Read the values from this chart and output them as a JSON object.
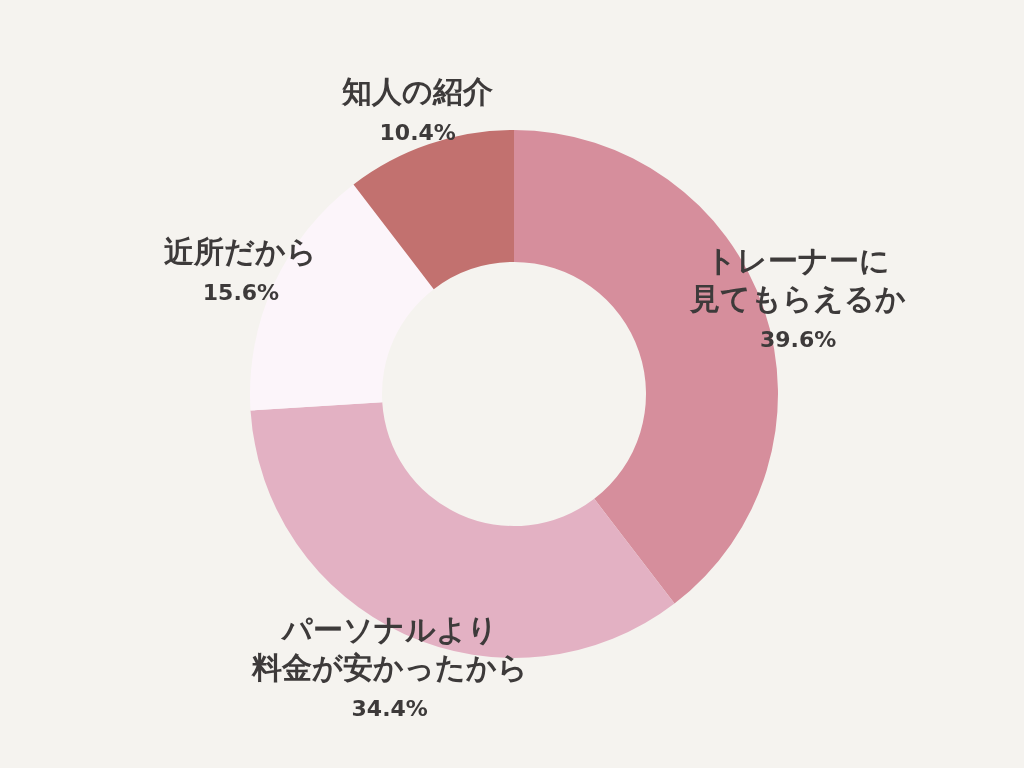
{
  "chart_data": {
    "type": "donut",
    "categories": [
      "トレーナーに見てもらえるか",
      "パーソナルより料金が安かったから",
      "近所だから",
      "知人の紹介"
    ],
    "values": [
      39.6,
      34.4,
      15.6,
      10.4
    ],
    "value_labels": [
      "39.6%",
      "34.4%",
      "15.6%",
      "10.4%"
    ],
    "colors": [
      "#d68e9c",
      "#e3b1c3",
      "#fcf5fa",
      "#c2716f"
    ]
  }
}
